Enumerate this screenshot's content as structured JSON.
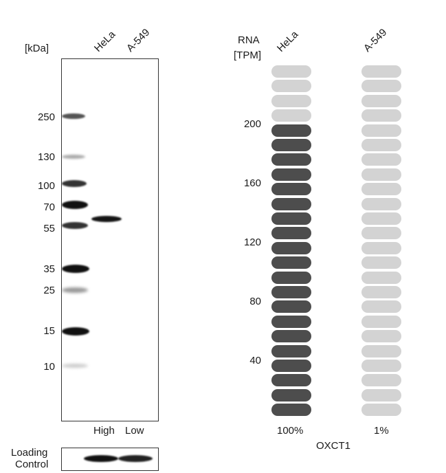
{
  "blot": {
    "unit_label": "[kDa]",
    "lanes": [
      "HeLa",
      "A-549"
    ],
    "markers": [
      "250",
      "130",
      "100",
      "70",
      "55",
      "35",
      "25",
      "15",
      "10"
    ],
    "lane_levels": [
      "High",
      "Low"
    ],
    "loading_control_line1": "Loading",
    "loading_control_line2": "Control"
  },
  "rna": {
    "axis_label_line1": "RNA",
    "axis_label_line2": "[TPM]",
    "samples": [
      "HeLa",
      "A-549"
    ],
    "ticks": [
      "200",
      "160",
      "120",
      "80",
      "40"
    ],
    "percentages": [
      "100%",
      "1%"
    ],
    "gene": "OXCT1",
    "high_color": "#4d4d4d",
    "low_color": "#d3d3d3"
  },
  "chart_data": {
    "type": "bar",
    "categories": [
      "HeLa",
      "A-549"
    ],
    "values": [
      100,
      1
    ],
    "ylabel": "RNA [TPM]",
    "xlabel": "OXCT1",
    "filled_segments": [
      20,
      0
    ],
    "total_segments": 24,
    "yticks": [
      40,
      80,
      120,
      160,
      200
    ]
  }
}
